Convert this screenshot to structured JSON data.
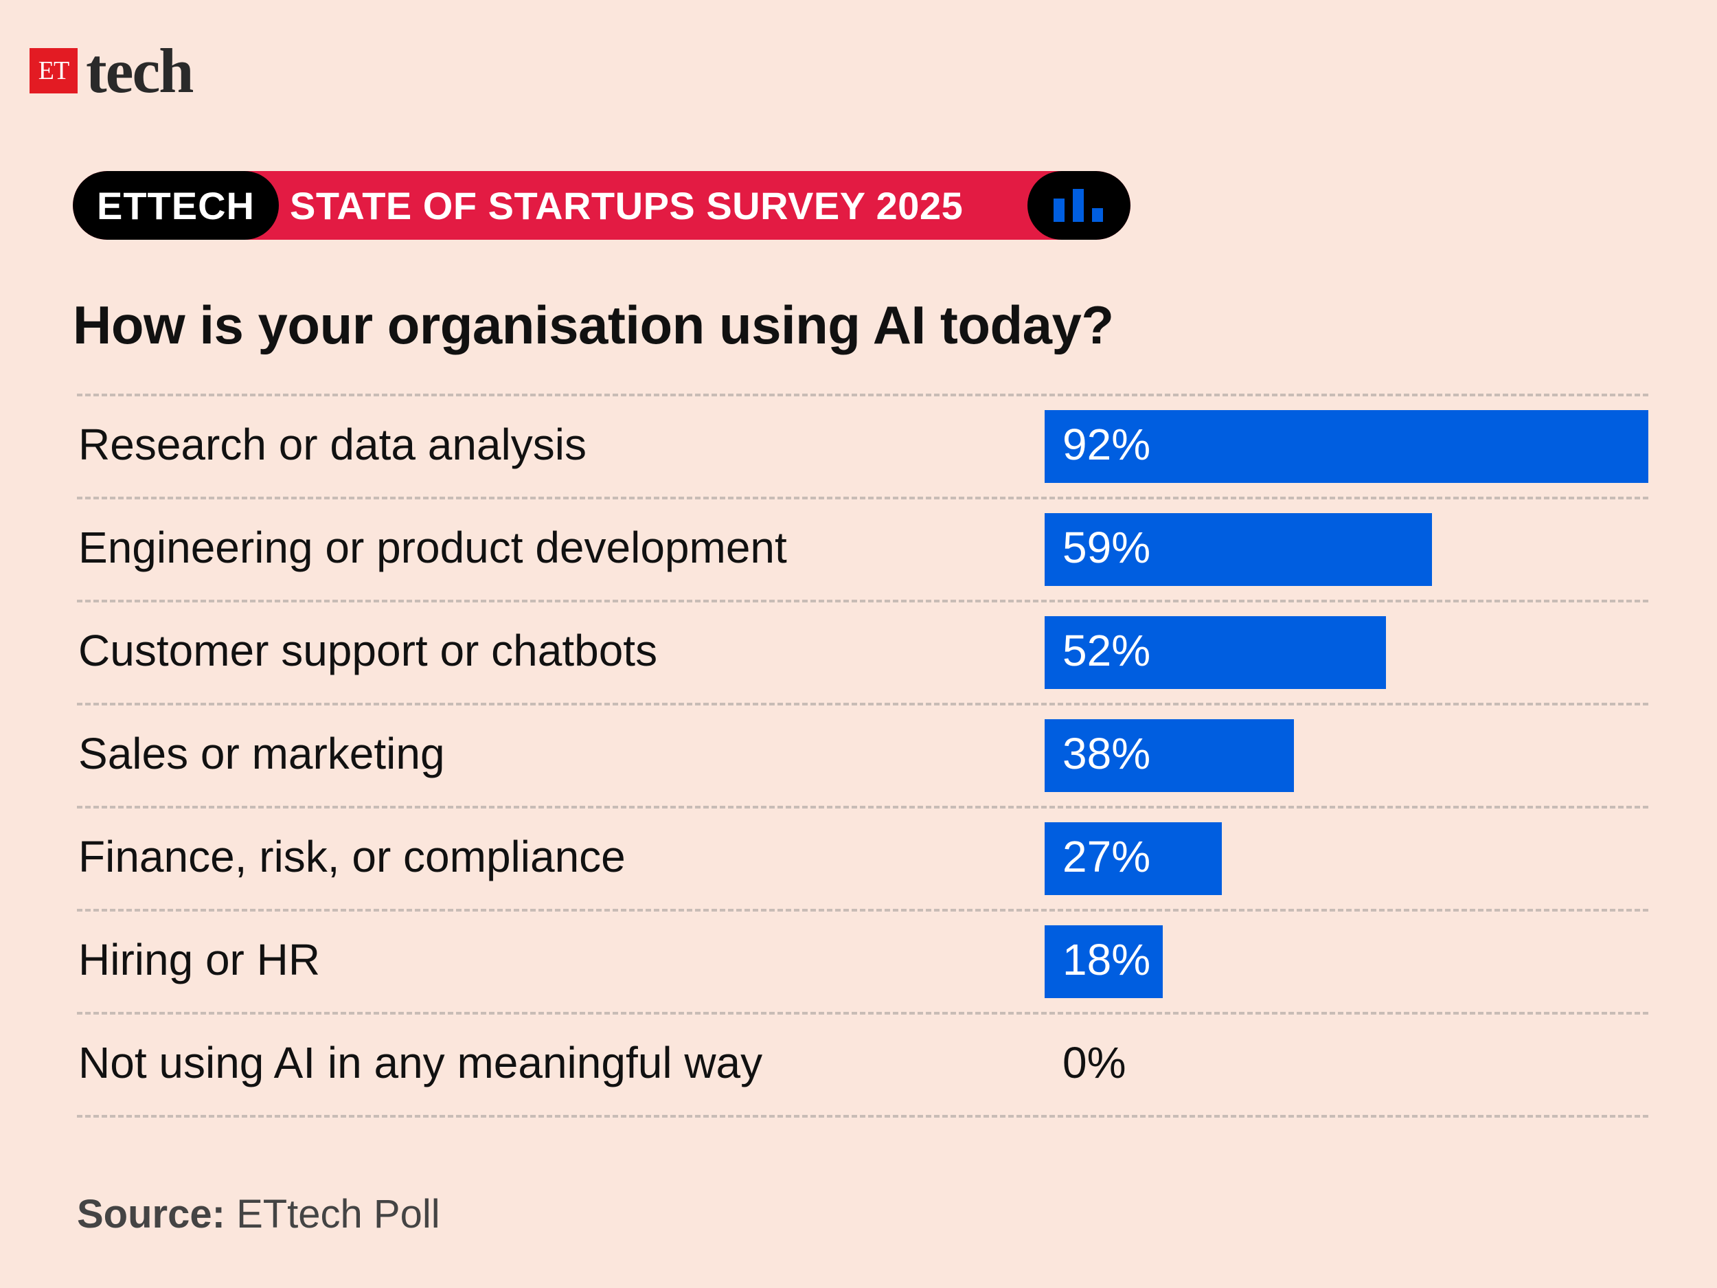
{
  "brand": {
    "logo_mark": "ET",
    "logo_word": "tech"
  },
  "banner": {
    "left_text": "ETTECH",
    "title": "STATE OF STARTUPS SURVEY 2025",
    "icon": "bar-chart-icon"
  },
  "question": "How is your organisation using AI today?",
  "colors": {
    "background": "#fbe6dc",
    "bar": "#005ee0",
    "banner_red": "#e31b43",
    "logo_red": "#e31b23"
  },
  "chart_data": {
    "type": "bar",
    "orientation": "horizontal",
    "title": "How is your organisation using AI today?",
    "categories": [
      "Research or data analysis",
      "Engineering or product development",
      "Customer support or chatbots",
      "Sales or marketing",
      "Finance, risk, or compliance",
      "Hiring or HR",
      "Not using AI in any meaningful way"
    ],
    "values": [
      92,
      59,
      52,
      38,
      27,
      18,
      0
    ],
    "value_labels": [
      "92%",
      "59%",
      "52%",
      "38%",
      "27%",
      "18%",
      "0%"
    ],
    "unit": "%",
    "xlim": [
      0,
      92
    ],
    "grid": false
  },
  "source": {
    "label": "Source:",
    "text": " ETtech Poll"
  }
}
